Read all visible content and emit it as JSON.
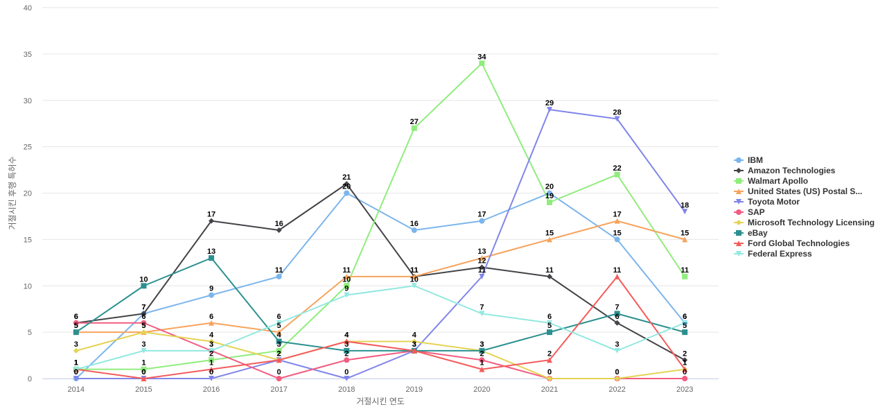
{
  "chart_data": {
    "type": "line",
    "title": "",
    "xlabel": "거절시킨 연도",
    "ylabel": "거절시킨 후행 특허수",
    "ylim": [
      0,
      40
    ],
    "yticks": [
      0,
      5,
      10,
      15,
      20,
      25,
      30,
      35,
      40
    ],
    "grid": true,
    "legend_position": "right",
    "categories": [
      "2014",
      "2015",
      "2016",
      "2017",
      "2018",
      "2019",
      "2020",
      "2021",
      "2022",
      "2023"
    ],
    "series": [
      {
        "name": "IBM",
        "color": "#7cb5ec",
        "marker": "circle",
        "values": [
          0,
          7,
          9,
          11,
          20,
          16,
          17,
          20,
          15,
          6
        ]
      },
      {
        "name": "Amazon Technologies",
        "color": "#434348",
        "marker": "diamond",
        "values": [
          6,
          7,
          17,
          16,
          21,
          11,
          12,
          11,
          6,
          2
        ]
      },
      {
        "name": "Walmart Apollo",
        "color": "#90ed7d",
        "marker": "square",
        "values": [
          1,
          1,
          2,
          3,
          10,
          27,
          34,
          19,
          22,
          11
        ]
      },
      {
        "name": "United States (US) Postal S...",
        "color": "#f7a35c",
        "marker": "triangle",
        "values": [
          5,
          5,
          6,
          5,
          11,
          11,
          13,
          15,
          17,
          15
        ]
      },
      {
        "name": "Toyota Motor",
        "color": "#8085e9",
        "marker": "triangle-down",
        "values": [
          0,
          0,
          0,
          2,
          0,
          3,
          11,
          29,
          28,
          18
        ]
      },
      {
        "name": "SAP",
        "color": "#f15c80",
        "marker": "circle",
        "values": [
          6,
          6,
          3,
          0,
          2,
          3,
          2,
          0,
          0,
          0
        ]
      },
      {
        "name": "Microsoft Technology Licensing",
        "color": "#e4d354",
        "marker": "diamond",
        "values": [
          3,
          5,
          4,
          2,
          4,
          4,
          3,
          0,
          0,
          1
        ]
      },
      {
        "name": "eBay",
        "color": "#2b908f",
        "marker": "square",
        "values": [
          5,
          10,
          13,
          4,
          3,
          3,
          3,
          5,
          7,
          5
        ]
      },
      {
        "name": "Ford Global Technologies",
        "color": "#f45b5b",
        "marker": "triangle",
        "values": [
          1,
          0,
          1,
          2,
          4,
          3,
          1,
          2,
          11,
          1
        ]
      },
      {
        "name": "Federal Express",
        "color": "#91e8e1",
        "marker": "triangle-down",
        "values": [
          1,
          3,
          3,
          6,
          9,
          10,
          7,
          6,
          3,
          6
        ]
      }
    ]
  }
}
